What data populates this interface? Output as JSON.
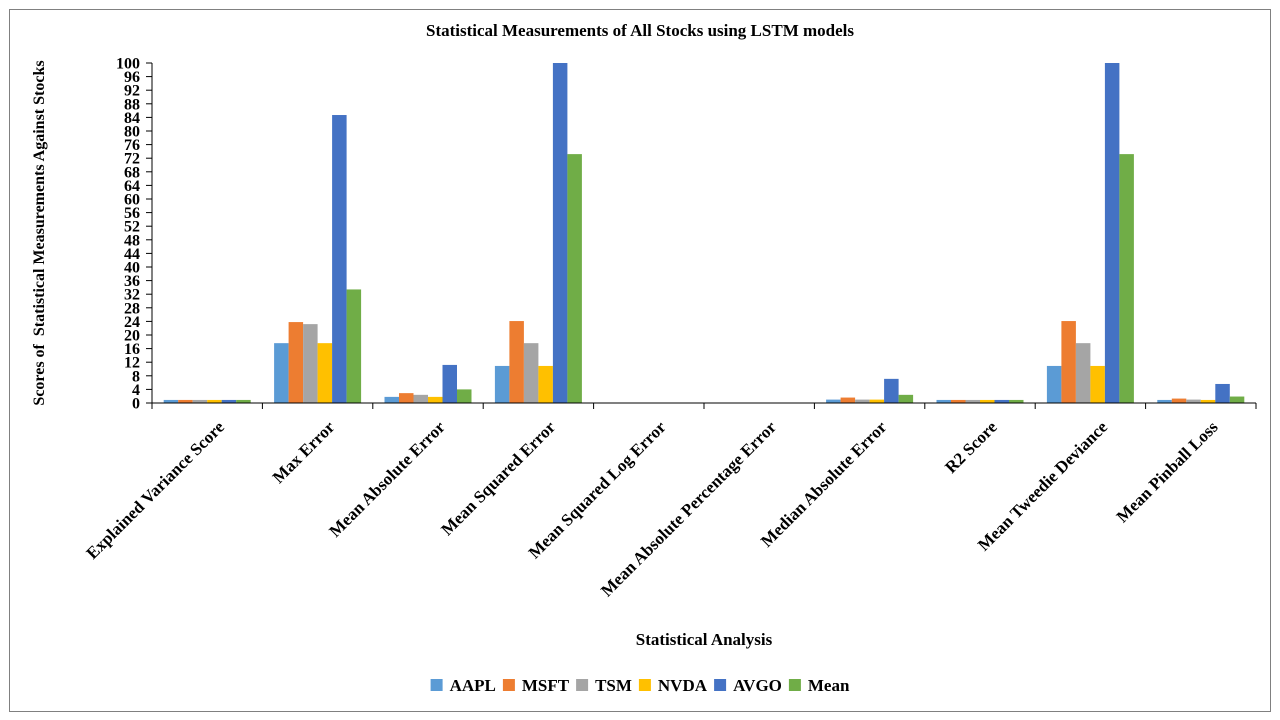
{
  "chart_data": {
    "type": "bar",
    "title": "Statistical Measurements of All Stocks using LSTM models",
    "xlabel": "Statistical Analysis",
    "ylabel": "Scores of  Statistical Measurements Against Stocks",
    "categories": [
      "Explained Variance Score",
      "Max Error",
      "Mean Absolute Error",
      "Mean Squared Error",
      "Mean Squared Log Error",
      "Mean Absolute Percentage Error",
      "Median Absolute Error",
      "R2 Score",
      "Mean Tweedie Deviance",
      "Mean Pinball Loss"
    ],
    "series": [
      {
        "name": "AAPL",
        "color": "#5B9BD5",
        "values": [
          0.9,
          17.6,
          1.8,
          10.9,
          0,
          0,
          1.0,
          0.9,
          10.9,
          0.9
        ]
      },
      {
        "name": "MSFT",
        "color": "#ED7D31",
        "values": [
          0.9,
          23.8,
          2.9,
          24.1,
          0,
          0,
          1.6,
          0.9,
          24.1,
          1.3
        ]
      },
      {
        "name": "TSM",
        "color": "#A5A5A5",
        "values": [
          0.9,
          23.2,
          2.4,
          17.6,
          0,
          0,
          1.0,
          0.9,
          17.6,
          1.0
        ]
      },
      {
        "name": "NVDA",
        "color": "#FFC000",
        "values": [
          0.9,
          17.6,
          1.8,
          10.9,
          0,
          0,
          1.0,
          0.9,
          10.9,
          0.9
        ]
      },
      {
        "name": "AVGO",
        "color": "#4472C4",
        "values": [
          0.9,
          84.7,
          11.2,
          100,
          0,
          0,
          7.1,
          0.9,
          100,
          5.6
        ]
      },
      {
        "name": "Mean",
        "color": "#70AD47",
        "values": [
          0.9,
          33.4,
          4.0,
          73.2,
          0,
          0,
          2.4,
          0.9,
          73.2,
          1.9
        ]
      }
    ],
    "ylim": [
      0,
      100
    ],
    "yticks": [
      0,
      4,
      8,
      12,
      16,
      20,
      24,
      28,
      32,
      36,
      40,
      44,
      48,
      52,
      56,
      60,
      64,
      68,
      72,
      76,
      80,
      84,
      88,
      92,
      96,
      100
    ],
    "grid": false,
    "legend": "bottom"
  }
}
